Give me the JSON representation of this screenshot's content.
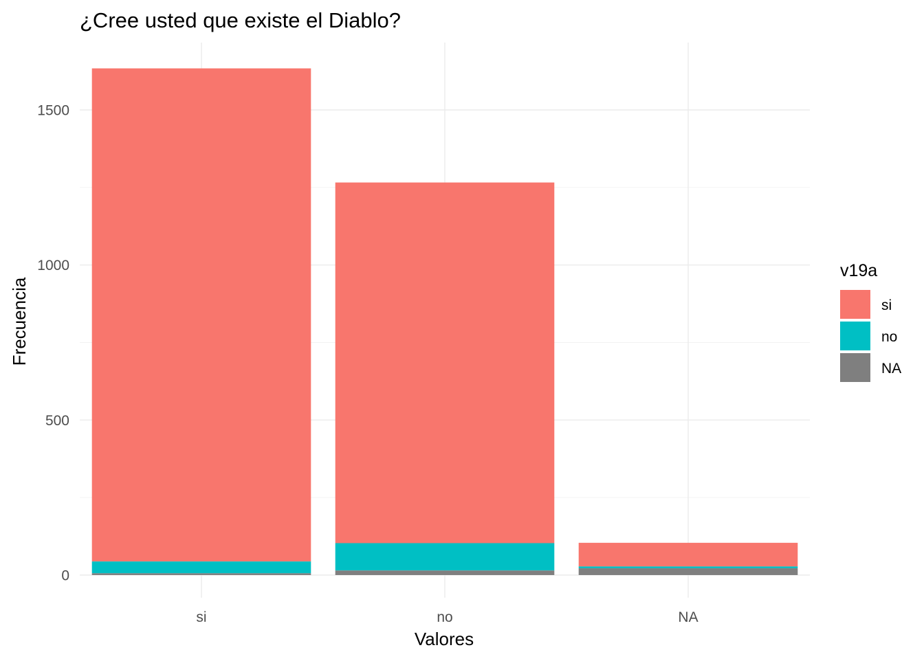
{
  "chart_data": {
    "type": "bar",
    "stacked": true,
    "title": "¿Cree usted que existe el Diablo?",
    "xlabel": "Valores",
    "ylabel": "Frecuencia",
    "categories": [
      "si",
      "no",
      "NA"
    ],
    "series": [
      {
        "name": "si",
        "color": "#F8766D",
        "values": [
          1590,
          1163,
          76
        ]
      },
      {
        "name": "no",
        "color": "#00BFC4",
        "values": [
          38,
          88,
          6
        ]
      },
      {
        "name": "NA",
        "color": "#7F7F7F",
        "values": [
          6,
          15,
          22
        ]
      }
    ],
    "stack_order_bottom_to_top": [
      "NA",
      "no",
      "si"
    ],
    "ylim": [
      0,
      1720
    ],
    "yticks": [
      0,
      500,
      1000,
      1500
    ],
    "grid": true,
    "legend": {
      "title": "v19a",
      "position": "right"
    }
  }
}
